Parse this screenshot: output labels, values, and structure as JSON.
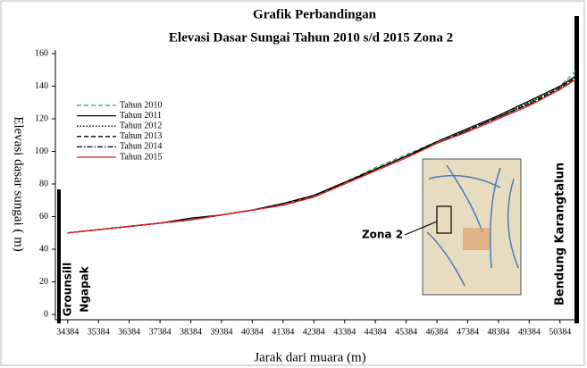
{
  "chart_data": {
    "type": "line",
    "title": "Grafik Perbandingan",
    "subtitle": "Elevasi Dasar Sungai Tahun 2010 s/d 2015 Zona 2",
    "xlabel": "Jarak dari muara (m)",
    "ylabel": "Elevasi dasar sungai ( m)",
    "x": [
      34384,
      35384,
      36384,
      37384,
      38384,
      39384,
      40384,
      41384,
      42384,
      43384,
      44384,
      45384,
      46384,
      47384,
      48384,
      49384,
      50384,
      50884
    ],
    "xlim": [
      33984,
      50884
    ],
    "xticks": [
      34384,
      35384,
      36384,
      37384,
      38384,
      39384,
      40384,
      41384,
      42384,
      43384,
      44384,
      45384,
      46384,
      47384,
      48384,
      49384,
      50384
    ],
    "ylim": [
      0,
      160
    ],
    "yticks": [
      0,
      20,
      40,
      60,
      80,
      100,
      120,
      140,
      160
    ],
    "legend": "upper left",
    "series": [
      {
        "name": "Tahun 2010",
        "color": "#2ca05a",
        "dash": "dashed",
        "values": [
          50,
          52,
          54,
          56,
          58,
          61,
          64,
          68,
          73,
          81,
          90,
          98,
          106,
          114,
          122,
          130,
          140,
          149
        ]
      },
      {
        "name": "Tahun 2011",
        "color": "#000000",
        "dash": "solid",
        "values": [
          50,
          52,
          54,
          56,
          59,
          61,
          64,
          68,
          73,
          81,
          89,
          97,
          106,
          114,
          122,
          131,
          140,
          146
        ]
      },
      {
        "name": "Tahun 2012",
        "color": "#000000",
        "dash": "dotted",
        "values": [
          50,
          52,
          54,
          56,
          58,
          61,
          64,
          68,
          73,
          81,
          89,
          97,
          105,
          113,
          121,
          130,
          139,
          145
        ]
      },
      {
        "name": "Tahun 2013",
        "color": "#000000",
        "dash": "dashed",
        "values": [
          50,
          52,
          54,
          56,
          58,
          61,
          64,
          68,
          72,
          81,
          89,
          97,
          105,
          113,
          121,
          129,
          139,
          145
        ]
      },
      {
        "name": "Tahun 2014",
        "color": "#000000",
        "dash": "dashdot",
        "values": [
          50,
          52,
          54,
          56,
          58,
          61,
          64,
          67,
          72,
          80,
          89,
          97,
          105,
          113,
          121,
          129,
          138,
          144
        ]
      },
      {
        "name": "Tahun 2015",
        "color": "#e02020",
        "dash": "solid",
        "values": [
          50,
          52,
          54,
          56,
          58,
          61,
          64,
          67,
          72,
          80,
          88,
          96,
          105,
          112,
          120,
          128,
          138,
          144
        ]
      }
    ],
    "annotations": [
      "Grounsill",
      "Ngapak",
      "Bendung  Karangtalun",
      "Zona 2"
    ]
  }
}
